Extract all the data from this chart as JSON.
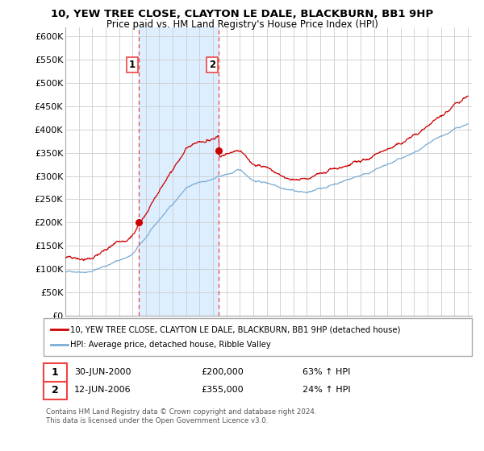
{
  "title1": "10, YEW TREE CLOSE, CLAYTON LE DALE, BLACKBURN, BB1 9HP",
  "title2": "Price paid vs. HM Land Registry's House Price Index (HPI)",
  "legend_line1": "10, YEW TREE CLOSE, CLAYTON LE DALE, BLACKBURN, BB1 9HP (detached house)",
  "legend_line2": "HPI: Average price, detached house, Ribble Valley",
  "footer1": "Contains HM Land Registry data © Crown copyright and database right 2024.",
  "footer2": "This data is licensed under the Open Government Licence v3.0.",
  "point1_label": "1",
  "point1_date": "30-JUN-2000",
  "point1_price": "£200,000",
  "point1_hpi": "63% ↑ HPI",
  "point2_label": "2",
  "point2_date": "12-JUN-2006",
  "point2_price": "£355,000",
  "point2_hpi": "24% ↑ HPI",
  "red_color": "#cc0000",
  "blue_color": "#7aadd4",
  "shade_color": "#ddeeff",
  "vline_color": "#ee4444",
  "grid_color": "#cccccc",
  "bg_color": "#ffffff",
  "ylim_min": 0,
  "ylim_max": 620000,
  "yticks": [
    0,
    50000,
    100000,
    150000,
    200000,
    250000,
    300000,
    350000,
    400000,
    450000,
    500000,
    550000,
    600000
  ],
  "ytick_labels": [
    "£0",
    "£50K",
    "£100K",
    "£150K",
    "£200K",
    "£250K",
    "£300K",
    "£350K",
    "£400K",
    "£450K",
    "£500K",
    "£550K",
    "£600K"
  ],
  "point1_year": 2000.5,
  "point1_value": 200000,
  "point2_year": 2006.45,
  "point2_value": 355000,
  "xlim_min": 1995,
  "xlim_max": 2025.3
}
